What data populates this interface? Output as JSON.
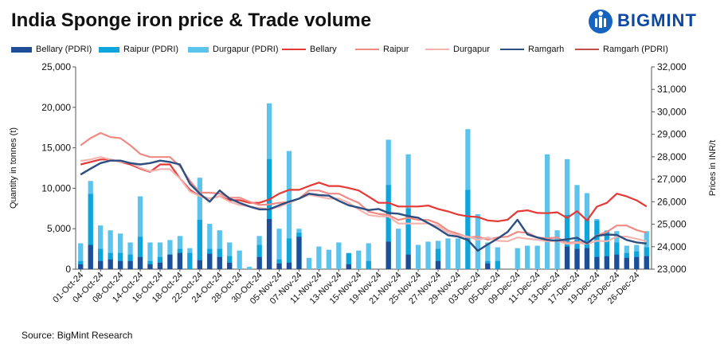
{
  "chart_data": {
    "type": "bar",
    "title": "India Sponge iron price & Trade volume",
    "brand": "BIGMINT",
    "source": "Source: BigMint Research",
    "ylabel": "Quantity in tonnes (t)",
    "y2label": "Prices in INR/t",
    "ylim": [
      0,
      25000
    ],
    "y2lim": [
      23000,
      32000
    ],
    "yticks": [
      "0",
      "5,000",
      "10,000",
      "15,000",
      "20,000",
      "25,000"
    ],
    "y2ticks": [
      "23,000",
      "24,000",
      "25,000",
      "26,000",
      "27,000",
      "28,000",
      "29,000",
      "30,000",
      "31,000",
      "32,000"
    ],
    "xtick_labels": [
      "01-Oct-24",
      "04-Oct-24",
      "08-Oct-24",
      "14-Oct-24",
      "16-Oct-24",
      "18-Oct-24",
      "22-Oct-24",
      "24-Oct-24",
      "28-Oct-24",
      "30-Oct-24",
      "05-Nov-24",
      "07-Nov-24",
      "11-Nov-24",
      "13-Nov-24",
      "15-Nov-24",
      "19-Nov-24",
      "21-Nov-24",
      "25-Nov-24",
      "27-Nov-24",
      "29-Nov-24",
      "03-Dec-24",
      "05-Dec-24",
      "09-Dec-24",
      "11-Dec-24",
      "13-Dec-24",
      "17-Dec-24",
      "19-Dec-24",
      "23-Dec-24",
      "26-Dec-24"
    ],
    "num_points": 58,
    "legend": [
      {
        "name": "Bellary (PDRI)",
        "kind": "bar",
        "color": "#1f4e99"
      },
      {
        "name": "Raipur (PDRI)",
        "kind": "bar",
        "color": "#0ea5dc"
      },
      {
        "name": "Durgapur (PDRI)",
        "kind": "bar",
        "color": "#5bc3ec"
      },
      {
        "name": "Bellary",
        "kind": "line",
        "color": "#e53935"
      },
      {
        "name": "Raipur",
        "kind": "line",
        "color": "#f08a85"
      },
      {
        "name": "Durgapur",
        "kind": "line",
        "color": "#f4b3ae"
      },
      {
        "name": "Ramgarh",
        "kind": "line",
        "color": "#2c4e80"
      },
      {
        "name": "Ramgarh (PDRI)",
        "kind": "line",
        "color": "#c0504d"
      }
    ],
    "bar_series": [
      {
        "name": "Bellary (PDRI)",
        "color": "#1f4e99",
        "values": [
          600,
          3000,
          1000,
          1200,
          1000,
          1000,
          1500,
          600,
          800,
          1800,
          2000,
          0,
          1100,
          1900,
          1500,
          800,
          0,
          0,
          1500,
          6200,
          700,
          800,
          4000,
          0,
          0,
          0,
          0,
          600,
          0,
          0,
          0,
          3400,
          0,
          1800,
          0,
          0,
          1000,
          0,
          0,
          0,
          0,
          700,
          0,
          0,
          0,
          0,
          0,
          0,
          0,
          2800,
          2500,
          2600,
          1500,
          1600,
          1800,
          1400,
          1500,
          1600
        ]
      },
      {
        "name": "Raipur (PDRI)",
        "color": "#0ea5dc",
        "values": [
          1000,
          9300,
          2500,
          2000,
          2000,
          1800,
          4000,
          1000,
          1500,
          1800,
          2500,
          2000,
          6100,
          2500,
          2500,
          1600,
          0,
          0,
          3000,
          13600,
          1200,
          3800,
          4500,
          0,
          0,
          0,
          0,
          2000,
          0,
          1000,
          0,
          10400,
          0,
          7500,
          0,
          0,
          2500,
          0,
          0,
          9800,
          0,
          1000,
          1000,
          0,
          0,
          0,
          0,
          0,
          0,
          6700,
          3700,
          6200,
          6000,
          4700,
          3300,
          2000,
          2200,
          2700
        ]
      },
      {
        "name": "Durgapur (PDRI)",
        "color": "#5bc3ec",
        "values": [
          3200,
          10900,
          5400,
          4800,
          4400,
          3300,
          9000,
          3300,
          3300,
          3600,
          4100,
          2600,
          11300,
          5600,
          4800,
          3300,
          2300,
          300,
          4100,
          20500,
          5000,
          14600,
          5000,
          1400,
          2800,
          2400,
          3300,
          1700,
          2300,
          3200,
          0,
          16000,
          5000,
          14200,
          3000,
          3400,
          3500,
          3800,
          3800,
          17300,
          6800,
          3300,
          2700,
          0,
          2600,
          2900,
          2900,
          14200,
          4800,
          13600,
          10400,
          9400,
          6200,
          4800,
          4700,
          2900,
          3000,
          4700
        ]
      }
    ],
    "line_series": [
      {
        "name": "Bellary",
        "color": "#e53935",
        "values": [
          27660,
          27770,
          27880,
          27880,
          27770,
          27660,
          27470,
          27330,
          27660,
          27660,
          27040,
          26530,
          26250,
          26140,
          26250,
          26070,
          26070,
          25950,
          25950,
          26100,
          26360,
          26530,
          26530,
          26700,
          26850,
          26700,
          26700,
          26610,
          26500,
          26230,
          25950,
          25950,
          25790,
          25790,
          25790,
          25830,
          25680,
          25570,
          25430,
          25350,
          25320,
          25170,
          25130,
          25200,
          25570,
          25620,
          25500,
          25490,
          25530,
          25280,
          25580,
          25170,
          25780,
          25950,
          26360,
          26240,
          26060,
          25790
        ]
      },
      {
        "name": "Raipur",
        "color": "#f08a85",
        "values": [
          28510,
          28830,
          29060,
          28880,
          28830,
          28510,
          28130,
          27990,
          27990,
          27990,
          27580,
          26930,
          26400,
          26400,
          26360,
          26180,
          26180,
          26000,
          25860,
          25880,
          25950,
          25980,
          26140,
          26500,
          26500,
          26360,
          26360,
          26140,
          25950,
          25560,
          25460,
          25410,
          25190,
          25290,
          25190,
          25190,
          25030,
          24720,
          24580,
          24410,
          24450,
          24310,
          24410,
          24450,
          24660,
          24620,
          24410,
          24370,
          24410,
          24170,
          24210,
          24170,
          24500,
          24660,
          24940,
          24940,
          24740,
          24620
        ]
      },
      {
        "name": "Durgapur",
        "color": "#f4b3ae",
        "values": [
          27820,
          27880,
          27990,
          27880,
          27770,
          27720,
          27510,
          27350,
          27450,
          27450,
          27040,
          26460,
          26250,
          26140,
          26250,
          26000,
          25860,
          25790,
          25720,
          25660,
          25780,
          25950,
          26140,
          26310,
          26230,
          26140,
          26140,
          25950,
          25660,
          25410,
          25350,
          25350,
          25030,
          25030,
          25030,
          25030,
          24920,
          24620,
          24510,
          24450,
          24300,
          24410,
          24260,
          24240,
          24410,
          24350,
          24310,
          24240,
          24260,
          24130,
          24170,
          24130,
          24260,
          24240,
          24450,
          24450,
          24350,
          24240
        ]
      },
      {
        "name": "Ramgarh",
        "color": "#2c4e80",
        "values": [
          27210,
          27470,
          27720,
          27830,
          27830,
          27720,
          27660,
          27720,
          27830,
          27770,
          27660,
          26800,
          26360,
          26000,
          26500,
          26140,
          25950,
          25790,
          25660,
          25660,
          25840,
          26000,
          26140,
          26360,
          26300,
          26270,
          26040,
          25840,
          25740,
          25630,
          25680,
          25500,
          25470,
          25360,
          25290,
          25050,
          24800,
          24510,
          24450,
          24300,
          23820,
          24100,
          24360,
          24660,
          25200,
          24550,
          24410,
          24300,
          24270,
          24330,
          24400,
          24150,
          24480,
          24540,
          24520,
          24300,
          24190,
          24140
        ]
      }
    ]
  }
}
